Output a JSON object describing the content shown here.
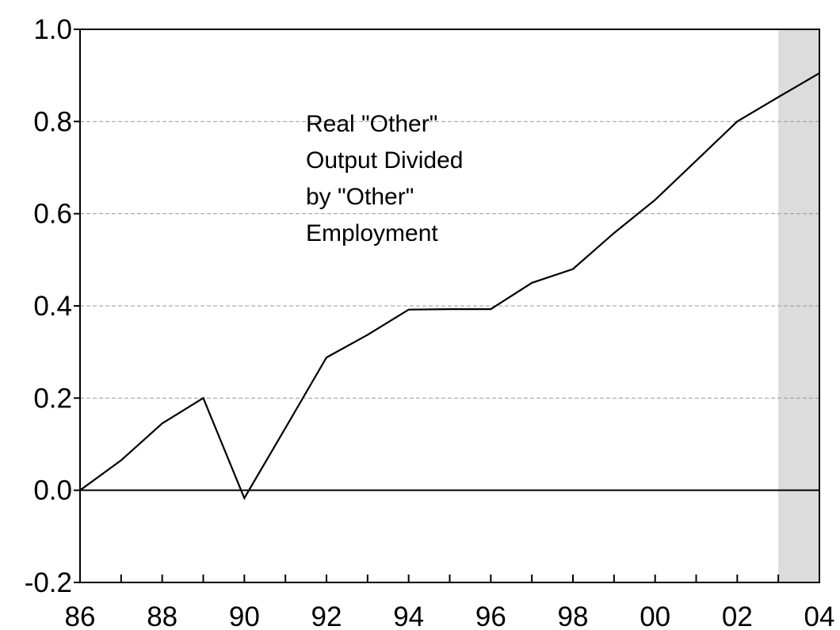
{
  "chart_data": {
    "type": "line",
    "title": "",
    "xlabel": "",
    "ylabel": "",
    "x": [
      1986,
      1987,
      1988,
      1989,
      1990,
      1991,
      1992,
      1993,
      1994,
      1995,
      1996,
      1997,
      1998,
      1999,
      2000,
      2001,
      2002,
      2003,
      2004
    ],
    "series": [
      {
        "name": "",
        "values": [
          0.0,
          0.065,
          0.145,
          0.2,
          -0.017,
          0.135,
          0.288,
          0.337,
          0.392,
          0.393,
          0.393,
          0.45,
          0.48,
          0.558,
          0.63,
          0.715,
          0.8,
          0.853,
          0.905
        ]
      }
    ],
    "xlim": [
      1986,
      2004
    ],
    "ylim": [
      -0.2,
      1.0
    ],
    "x_ticks": [
      1986,
      1987,
      1988,
      1989,
      1990,
      1991,
      1992,
      1993,
      1994,
      1995,
      1996,
      1997,
      1998,
      1999,
      2000,
      2001,
      2002,
      2003,
      2004
    ],
    "x_tick_labels": [
      {
        "x": 1986,
        "label": "86"
      },
      {
        "x": 1988,
        "label": "88"
      },
      {
        "x": 1990,
        "label": "90"
      },
      {
        "x": 1992,
        "label": "92"
      },
      {
        "x": 1994,
        "label": "94"
      },
      {
        "x": 1996,
        "label": "96"
      },
      {
        "x": 1998,
        "label": "98"
      },
      {
        "x": 2000,
        "label": "00"
      },
      {
        "x": 2002,
        "label": "02"
      },
      {
        "x": 2004,
        "label": "04"
      }
    ],
    "y_ticks": [
      {
        "value": -0.2,
        "label": "-0.2"
      },
      {
        "value": 0.0,
        "label": "0.0"
      },
      {
        "value": 0.2,
        "label": "0.2"
      },
      {
        "value": 0.4,
        "label": "0.4"
      },
      {
        "value": 0.6,
        "label": "0.6"
      },
      {
        "value": 0.8,
        "label": "0.8"
      },
      {
        "value": 1.0,
        "label": "1.0"
      }
    ],
    "gridlines": [
      0.2,
      0.4,
      0.6,
      0.8
    ],
    "zero_line": 0.0,
    "shaded_region": {
      "x_start": 2003,
      "x_end": 2004,
      "color": "#dcdcdc"
    },
    "annotation": {
      "lines": [
        "Real \"Other\"",
        "Output Divided",
        "by \"Other\"",
        "Employment"
      ]
    },
    "colors": {
      "line": "#000000",
      "grid": "#9a9a9a",
      "axis": "#000000"
    }
  }
}
